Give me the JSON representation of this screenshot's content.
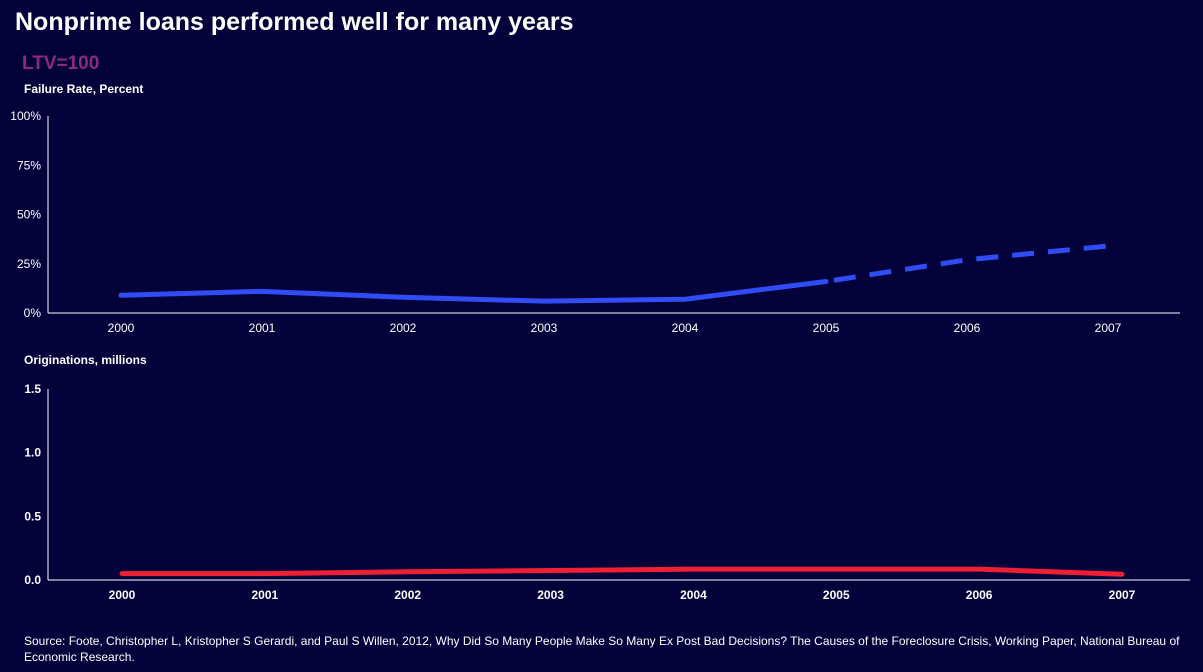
{
  "title": "Nonprime loans performed well for many years",
  "subtitle": "LTV=100",
  "source": "Source: Foote, Christopher L, Kristopher S Gerardi, and Paul S Willen, 2012, Why Did So Many People Make So Many Ex Post Bad Decisions? The Causes of the Foreclosure Crisis, Working Paper, National Bureau of Economic Research.",
  "colors": {
    "background": "#03013a",
    "failure_line": "#2f4cf5",
    "originations_line": "#f01f33",
    "subtitle": "#8c2a7a"
  },
  "chart_data": [
    {
      "type": "line",
      "ylabel": "Failure Rate, Percent",
      "categories": [
        "2000",
        "2001",
        "2002",
        "2003",
        "2004",
        "2005",
        "2006",
        "2007"
      ],
      "y_ticks": [
        "0%",
        "25%",
        "50%",
        "75%",
        "100%"
      ],
      "ylim": [
        0,
        100
      ],
      "series": [
        {
          "values": [
            9,
            11,
            8,
            6,
            7,
            16,
            27,
            34
          ],
          "solid_through": "2005",
          "dashed_from": "2005"
        }
      ]
    },
    {
      "type": "line",
      "ylabel": "Originations, millions",
      "categories": [
        "2000",
        "2001",
        "2002",
        "2003",
        "2004",
        "2005",
        "2006",
        "2007"
      ],
      "y_ticks": [
        "0.0",
        "0.5",
        "1.0",
        "1.5"
      ],
      "ylim": [
        0,
        1.5
      ],
      "series": [
        {
          "values": [
            0.05,
            0.05,
            0.065,
            0.075,
            0.085,
            0.085,
            0.085,
            0.045
          ]
        }
      ]
    }
  ]
}
